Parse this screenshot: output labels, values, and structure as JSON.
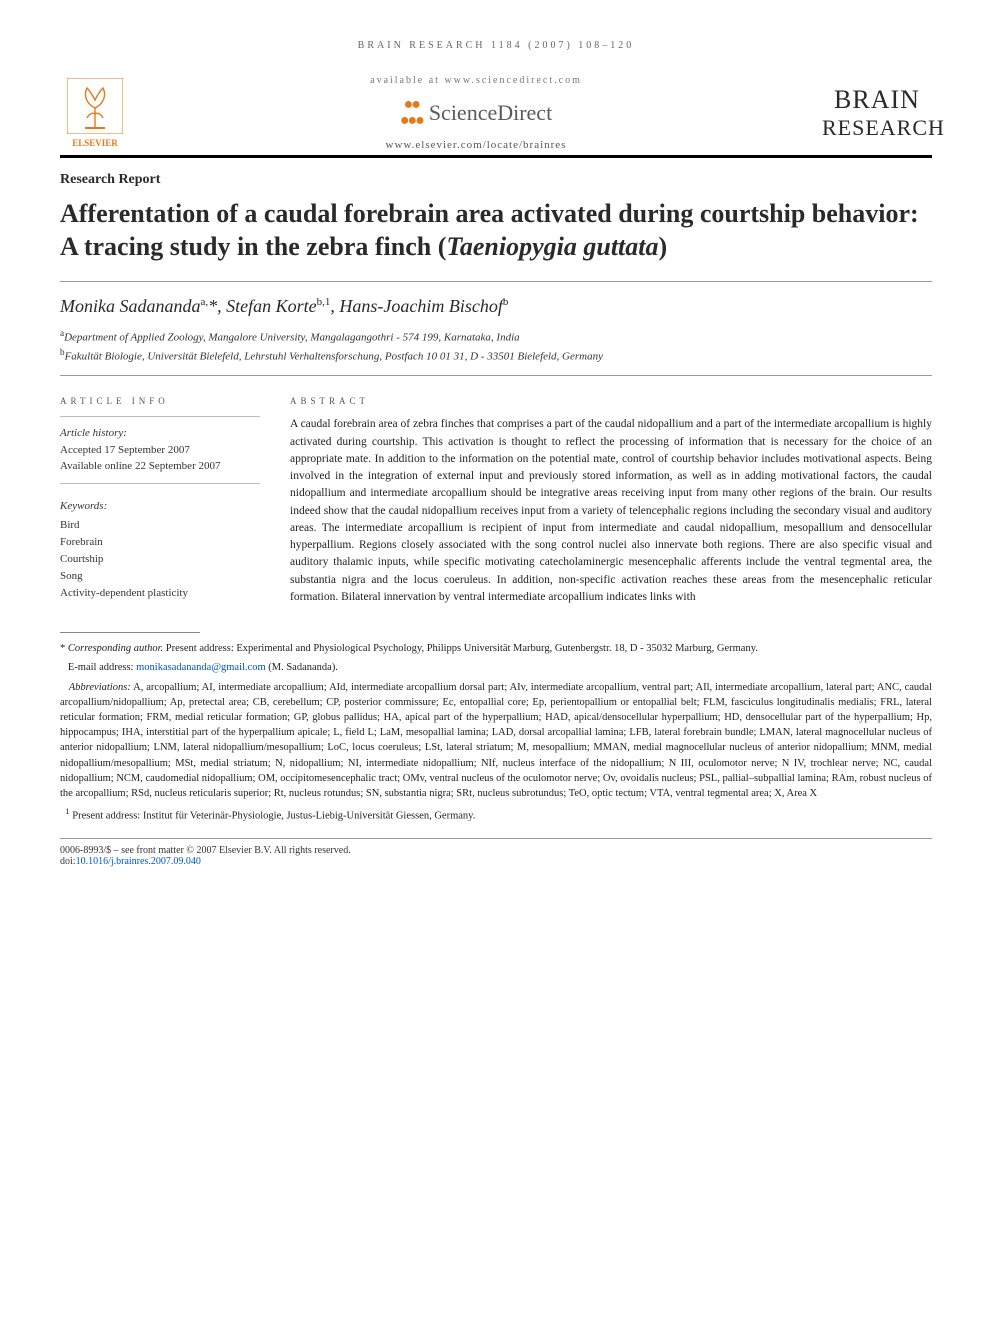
{
  "running_head": "BRAIN RESEARCH 1184 (2007) 108–120",
  "masthead": {
    "available_at": "available at www.sciencedirect.com",
    "sd_name": "ScienceDirect",
    "locate": "www.elsevier.com/locate/brainres",
    "elsevier": "ELSEVIER",
    "journal_l1": "BRAIN",
    "journal_l2": "RESEARCH"
  },
  "section_label": "Research Report",
  "title_pre": "Afferentation of a caudal forebrain area activated during courtship behavior: A tracing study in the zebra finch (",
  "title_species": "Taeniopygia guttata",
  "title_post": ")",
  "authors_html": "Monika Sadananda<sup>a,</sup>*, Stefan Korte<sup>b,1</sup>, Hans-Joachim Bischof<sup>b</sup>",
  "affiliations": {
    "a": "Department of Applied Zoology, Mangalore University, Mangalagangothri - 574 199, Karnataka, India",
    "b": "Fakultät Biologie, Universität Bielefeld, Lehrstuhl Verhaltensforschung, Postfach 10 01 31, D - 33501 Bielefeld, Germany"
  },
  "article_info": {
    "head": "ARTICLE INFO",
    "history_label": "Article history:",
    "accepted": "Accepted 17 September 2007",
    "online": "Available online 22 September 2007"
  },
  "keywords": {
    "label": "Keywords:",
    "items": [
      "Bird",
      "Forebrain",
      "Courtship",
      "Song",
      "Activity-dependent plasticity"
    ]
  },
  "abstract": {
    "head": "ABSTRACT",
    "text": "A caudal forebrain area of zebra finches that comprises a part of the caudal nidopallium and a part of the intermediate arcopallium is highly activated during courtship. This activation is thought to reflect the processing of information that is necessary for the choice of an appropriate mate. In addition to the information on the potential mate, control of courtship behavior includes motivational aspects. Being involved in the integration of external input and previously stored information, as well as in adding motivational factors, the caudal nidopallium and intermediate arcopallium should be integrative areas receiving input from many other regions of the brain. Our results indeed show that the caudal nidopallium receives input from a variety of telencephalic regions including the secondary visual and auditory areas. The intermediate arcopallium is recipient of input from intermediate and caudal nidopallium, mesopallium and densocellular hyperpallium. Regions closely associated with the song control nuclei also innervate both regions. There are also specific visual and auditory thalamic inputs, while specific motivating catecholaminergic mesencephalic afferents include the ventral tegmental area, the substantia nigra and the locus coeruleus. In addition, non-specific activation reaches these areas from the mesencephalic reticular formation. Bilateral innervation by ventral intermediate arcopallium indicates links with"
  },
  "footnotes": {
    "corresponding_label": "Corresponding author.",
    "corresponding_text": " Present address: Experimental and Physiological Psychology, Philipps Universität Marburg, Gutenbergstr. 18, D - 35032 Marburg, Germany.",
    "email_label": "E-mail address: ",
    "email": "monikasadananda@gmail.com",
    "email_person": " (M. Sadananda).",
    "abbrev_label": "Abbreviations:",
    "abbrev_text": " A, arcopallium; AI, intermediate arcopallium; AId, intermediate arcopallium dorsal part; AIv, intermediate arcopallium, ventral part; AIl, intermediate arcopallium, lateral part; ANC, caudal arcopallium/nidopallium; Ap, pretectal area; CB, cerebellum; CP, posterior commissure; Ec, entopallial core; Ep, perientopallium or entopallial belt; FLM, fasciculus longitudinalis medialis; FRL, lateral reticular formation; FRM, medial reticular formation; GP, globus pallidus; HA, apical part of the hyperpallium; HAD, apical/densocellular hyperpallium; HD, densocellular part of the hyperpallium; Hp, hippocampus; IHA, interstitial part of the hyperpallium apicale; L, field L; LaM, mesopallial lamina; LAD, dorsal arcopallial lamina; LFB, lateral forebrain bundle; LMAN, lateral magnocellular nucleus of anterior nidopallium; LNM, lateral nidopallium/mesopallium; LoC, locus coeruleus; LSt, lateral striatum; M, mesopallium; MMAN, medial magnocellular nucleus of anterior nidopallium; MNM, medial nidopallium/mesopallium; MSt, medial striatum; N, nidopallium; NI, intermediate nidopallium; NIf, nucleus interface of the nidopallium; N III, oculomotor nerve; N IV, trochlear nerve; NC, caudal nidopallium; NCM, caudomedial nidopallium; OM, occipitomesencephalic tract; OMv, ventral nucleus of the oculomotor nerve; Ov, ovoidalis nucleus; PSL, pallial–subpallial lamina; RAm, robust nucleus of the arcopallium; RSd, nucleus reticularis superior; Rt, nucleus rotundus; SN, substantia nigra; SRt, nucleus subrotundus; TeO, optic tectum; VTA, ventral tegmental area; X, Area X",
    "present_addr": "Present address: Institut für Veterinär-Physiologie, Justus-Liebig-Universität Giessen, Germany."
  },
  "bottom": {
    "copyright": "0006-8993/$ – see front matter © 2007 Elsevier B.V. All rights reserved.",
    "doi_label": "doi:",
    "doi": "10.1016/j.brainres.2007.09.040"
  },
  "colors": {
    "accent": "#e67817",
    "link": "#0056c7"
  }
}
